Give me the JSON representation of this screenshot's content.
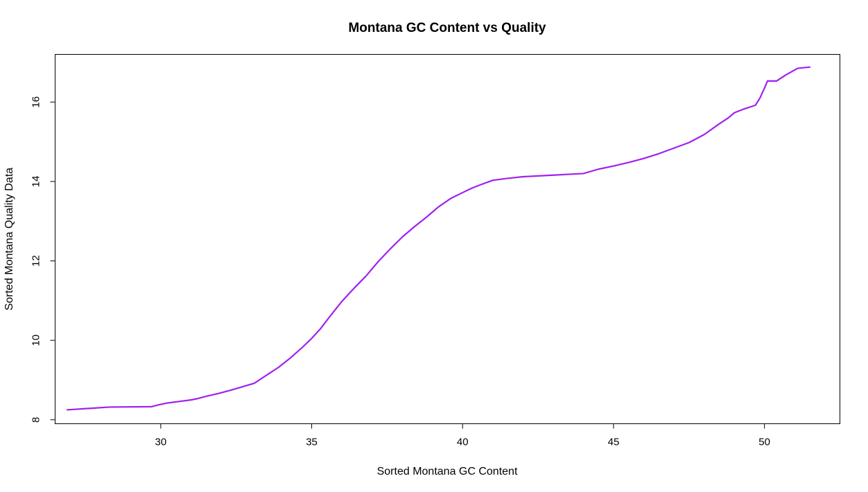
{
  "chart_data": {
    "type": "line",
    "title": "Montana GC Content vs Quality",
    "xlabel": "Sorted Montana GC Content",
    "ylabel": "Sorted Montana Quality Data",
    "xlim": [
      26.5,
      52.5
    ],
    "ylim": [
      7.9,
      17.2
    ],
    "xticks": [
      30,
      35,
      40,
      45,
      50
    ],
    "yticks": [
      8,
      10,
      12,
      14,
      16
    ],
    "grid": false,
    "series": [
      {
        "color": "#a020f0",
        "x": [
          26.9,
          28.3,
          29.7,
          29.9,
          30.2,
          30.5,
          31.0,
          31.2,
          31.5,
          31.9,
          32.3,
          32.7,
          33.1,
          33.5,
          33.9,
          34.3,
          34.7,
          35.0,
          35.3,
          35.6,
          36.0,
          36.4,
          36.8,
          37.2,
          37.6,
          38.0,
          38.4,
          38.8,
          39.2,
          39.6,
          40.0,
          40.3,
          40.6,
          41.0,
          41.5,
          42.0,
          42.5,
          43.0,
          43.5,
          44.0,
          44.5,
          45.0,
          45.5,
          46.0,
          46.5,
          47.0,
          47.5,
          48.0,
          48.5,
          48.8,
          49.0,
          49.3,
          49.7,
          49.85,
          50.0,
          50.1,
          50.4,
          50.7,
          51.1,
          51.5
        ],
        "y": [
          8.25,
          8.32,
          8.33,
          8.37,
          8.42,
          8.45,
          8.5,
          8.53,
          8.59,
          8.66,
          8.74,
          8.83,
          8.92,
          9.12,
          9.32,
          9.56,
          9.83,
          10.05,
          10.3,
          10.6,
          10.98,
          11.31,
          11.62,
          11.98,
          12.3,
          12.6,
          12.86,
          13.1,
          13.36,
          13.57,
          13.72,
          13.83,
          13.92,
          14.03,
          14.08,
          14.12,
          14.14,
          14.16,
          14.18,
          14.2,
          14.31,
          14.39,
          14.48,
          14.58,
          14.7,
          14.84,
          14.98,
          15.18,
          15.45,
          15.6,
          15.73,
          15.82,
          15.92,
          16.1,
          16.35,
          16.53,
          16.53,
          16.68,
          16.85,
          16.88
        ]
      }
    ]
  }
}
